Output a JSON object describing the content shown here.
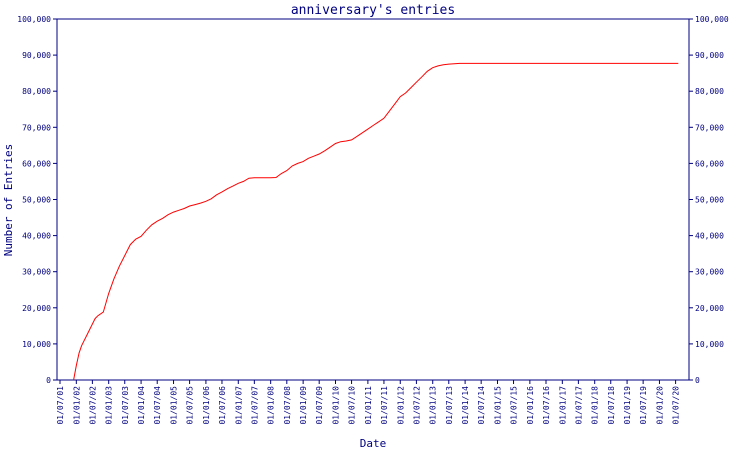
{
  "chart_data": {
    "type": "line",
    "title": "anniversary's entries",
    "xlabel": "Date",
    "ylabel": "Number of Entries",
    "x_tick_labels": [
      "01/07/01",
      "01/01/02",
      "01/07/02",
      "01/01/03",
      "01/07/03",
      "01/01/04",
      "01/07/04",
      "01/01/05",
      "01/07/05",
      "01/01/06",
      "01/07/06",
      "01/01/07",
      "01/07/07",
      "01/01/08",
      "01/07/08",
      "01/01/09",
      "01/07/09",
      "01/01/10",
      "01/07/10",
      "01/01/11",
      "01/07/11",
      "01/01/12",
      "01/07/12",
      "01/01/13",
      "01/07/13",
      "01/01/14",
      "01/07/14",
      "01/01/15",
      "01/07/15",
      "01/01/16",
      "01/07/16",
      "01/01/17",
      "01/07/17",
      "01/01/18",
      "01/07/18",
      "01/01/19",
      "01/07/19",
      "01/01/20",
      "01/07/20"
    ],
    "y_tick_labels": [
      "0",
      "10,000",
      "20,000",
      "30,000",
      "40,000",
      "50,000",
      "60,000",
      "70,000",
      "80,000",
      "90,000",
      "100,000"
    ],
    "ylim": [
      0,
      100000
    ],
    "grid": false,
    "colors": {
      "axis": "#000080",
      "line": "#ff0000",
      "text": "#000080"
    },
    "series": [
      {
        "x": [
          "2001-12-01",
          "2002-01-01",
          "2002-02-01",
          "2002-03-01",
          "2002-05-01",
          "2002-07-01",
          "2002-08-01",
          "2002-09-01",
          "2002-11-01",
          "2003-01-01",
          "2003-03-01",
          "2003-05-01",
          "2003-07-01",
          "2003-09-01",
          "2003-11-01",
          "2004-01-01",
          "2004-03-01",
          "2004-05-01",
          "2004-07-01",
          "2004-09-01",
          "2004-11-01",
          "2005-01-01",
          "2005-03-01",
          "2005-05-01",
          "2005-07-01",
          "2005-09-01",
          "2005-11-01",
          "2006-01-01",
          "2006-03-01",
          "2006-05-01",
          "2006-07-01",
          "2006-09-01",
          "2006-11-01",
          "2007-01-01",
          "2007-03-01",
          "2007-05-01",
          "2007-07-01",
          "2007-09-01",
          "2007-11-01",
          "2008-01-01",
          "2008-03-01",
          "2008-05-01",
          "2008-07-01",
          "2008-09-01",
          "2008-11-01",
          "2009-01-01",
          "2009-03-01",
          "2009-05-01",
          "2009-07-01",
          "2009-09-01",
          "2009-11-01",
          "2010-01-01",
          "2010-03-01",
          "2010-05-01",
          "2010-07-01",
          "2010-09-01",
          "2010-11-01",
          "2011-01-01",
          "2011-03-01",
          "2011-05-01",
          "2011-07-01",
          "2011-09-01",
          "2011-11-01",
          "2012-01-01",
          "2012-03-01",
          "2012-05-01",
          "2012-07-01",
          "2012-09-01",
          "2012-11-01",
          "2013-01-01",
          "2013-03-01",
          "2013-05-01",
          "2013-07-01",
          "2013-09-01",
          "2013-11-01",
          "2014-01-01",
          "2014-03-01",
          "2014-05-01",
          "2014-07-01",
          "2014-09-01",
          "2014-11-01",
          "2015-01-01",
          "2015-04-01",
          "2015-07-01",
          "2016-01-01",
          "2017-01-01",
          "2018-01-01",
          "2019-01-01",
          "2020-01-01",
          "2020-08-01"
        ],
        "y": [
          0,
          4000,
          7500,
          9500,
          12500,
          15500,
          17000,
          17800,
          18800,
          24000,
          28000,
          31500,
          34500,
          37500,
          39000,
          39800,
          41500,
          43000,
          44000,
          44800,
          45800,
          46500,
          47000,
          47500,
          48200,
          48600,
          49000,
          49500,
          50200,
          51300,
          52100,
          53000,
          53700,
          54500,
          55000,
          55900,
          56000,
          56000,
          56000,
          56000,
          56100,
          57200,
          58000,
          59300,
          60000,
          60500,
          61400,
          62000,
          62600,
          63500,
          64500,
          65500,
          66000,
          66200,
          66500,
          67500,
          68500,
          69500,
          70500,
          71500,
          72500,
          74500,
          76500,
          78500,
          79500,
          81000,
          82500,
          84000,
          85500,
          86500,
          87000,
          87300,
          87500,
          87600,
          87700,
          87700,
          87700,
          87700,
          87700,
          87700,
          87700,
          87700,
          87700,
          87700,
          87700,
          87700,
          87700,
          87700,
          87700,
          87700
        ]
      }
    ]
  }
}
